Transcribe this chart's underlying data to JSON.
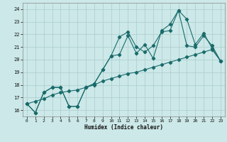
{
  "xlabel": "Humidex (Indice chaleur)",
  "bg_color": "#cce8e8",
  "grid_color": "#aacccc",
  "line_color": "#1a6b6b",
  "xlim": [
    -0.5,
    23.5
  ],
  "ylim": [
    15.5,
    24.5
  ],
  "xticks": [
    0,
    1,
    2,
    3,
    4,
    5,
    6,
    7,
    8,
    9,
    10,
    11,
    12,
    13,
    14,
    15,
    16,
    17,
    18,
    19,
    20,
    21,
    22,
    23
  ],
  "yticks": [
    16,
    17,
    18,
    19,
    20,
    21,
    22,
    23,
    24
  ],
  "line1_x": [
    0,
    1,
    2,
    3,
    4,
    5,
    6,
    7,
    8,
    9,
    10,
    11,
    12,
    13,
    14,
    15,
    16,
    17,
    18,
    19,
    20,
    21,
    22,
    23
  ],
  "line1_y": [
    16.5,
    15.8,
    17.4,
    17.8,
    17.8,
    16.3,
    16.3,
    17.8,
    18.1,
    19.2,
    20.3,
    21.8,
    22.2,
    21.0,
    20.6,
    21.1,
    22.2,
    22.3,
    23.9,
    21.1,
    21.0,
    21.9,
    21.1,
    19.9
  ],
  "line2_x": [
    0,
    1,
    2,
    3,
    4,
    5,
    6,
    7,
    8,
    9,
    10,
    11,
    12,
    13,
    14,
    15,
    16,
    17,
    18,
    19,
    20,
    21,
    22,
    23
  ],
  "line2_y": [
    16.5,
    15.8,
    17.4,
    17.8,
    17.8,
    16.3,
    16.3,
    17.8,
    18.1,
    19.2,
    20.3,
    20.4,
    21.9,
    20.5,
    21.2,
    20.1,
    22.3,
    22.8,
    23.9,
    23.2,
    21.2,
    22.1,
    20.9,
    19.9
  ],
  "line3_x": [
    0,
    1,
    2,
    3,
    4,
    5,
    6,
    7,
    8,
    9,
    10,
    11,
    12,
    13,
    14,
    15,
    16,
    17,
    18,
    19,
    20,
    21,
    22,
    23
  ],
  "line3_y": [
    16.5,
    16.7,
    16.9,
    17.2,
    17.4,
    17.5,
    17.6,
    17.8,
    18.0,
    18.3,
    18.5,
    18.7,
    18.9,
    19.0,
    19.2,
    19.4,
    19.6,
    19.8,
    20.0,
    20.2,
    20.4,
    20.6,
    20.8,
    19.9
  ],
  "marker": "D",
  "markersize": 2.2,
  "linewidth": 0.8
}
